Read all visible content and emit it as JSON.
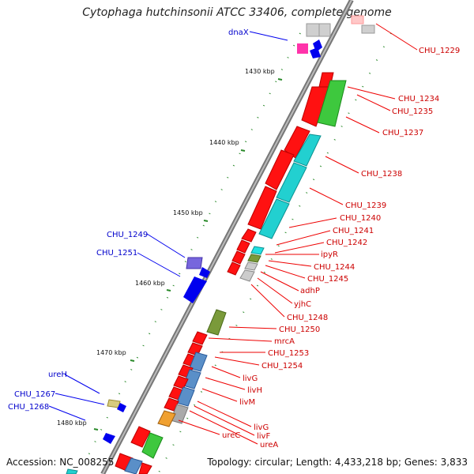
{
  "title": "Cytophaga hutchinsonii ATCC 33406, complete genome",
  "footer": {
    "accession": "Accession: NC_008255",
    "topology": "Topology: circular; Length: 4,433,218 bp; Genes: 3,833"
  },
  "scale_labels": [
    "1430 kbp",
    "1440 kbp",
    "1450 kbp",
    "1460 kbp",
    "1470 kbp",
    "1480 kbp"
  ],
  "right_genes": [
    "CHU_1229",
    "CHU_1234",
    "CHU_1235",
    "CHU_1237",
    "CHU_1238",
    "CHU_1239",
    "CHU_1240",
    "CHU_1241",
    "CHU_1242",
    "ipyR",
    "CHU_1244",
    "CHU_1245",
    "adhP",
    "yjhC",
    "CHU_1248",
    "CHU_1250",
    "mrcA",
    "CHU_1253",
    "CHU_1254",
    "livG",
    "livH",
    "livM",
    "livG",
    "livF",
    "ureC",
    "ureA"
  ],
  "left_genes": [
    "dnaX",
    "CHU_1249",
    "CHU_1251",
    "ureH",
    "CHU_1267",
    "CHU_1268"
  ],
  "colors": {
    "backbone": "#888888",
    "forward_gene": "#ff0000",
    "reverse_gene": "#0000ee",
    "right_label": "#cc0000",
    "left_label": "#0000cc",
    "rna": "#33cc33",
    "cyan": "#22d0d0",
    "steel": "#5a8fc8",
    "olive": "#7a9a3a"
  }
}
